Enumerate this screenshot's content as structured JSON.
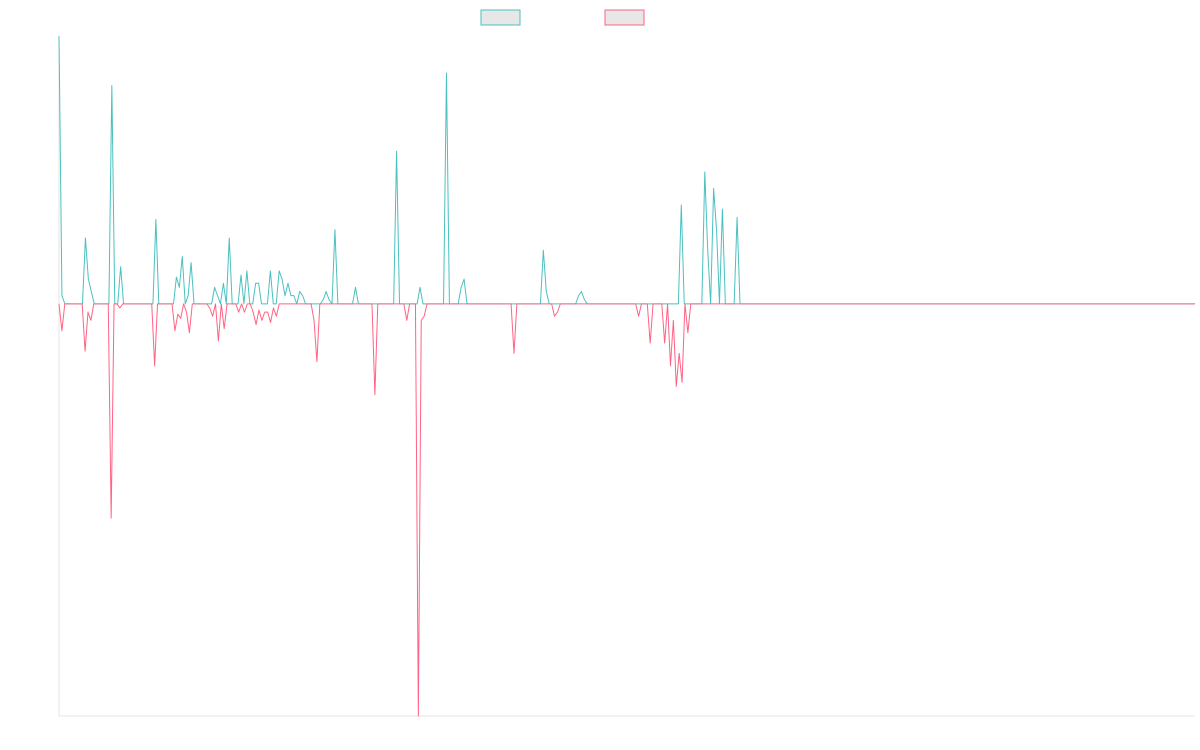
{
  "chart_data": {
    "type": "line",
    "title": "",
    "xlabel": "",
    "ylabel": "",
    "legend": "top-center",
    "grid": false,
    "xlim": [
      0,
      380
    ],
    "ylim": [
      -1.0,
      0.65
    ],
    "series": [
      {
        "color": "#4bc0c0",
        "swatch_fill": "#e7e7e7",
        "values": [
          0.65,
          0.02,
          0,
          0,
          0,
          0,
          0,
          0,
          0,
          0.16,
          0.06,
          0.03,
          0,
          0,
          0,
          0,
          0,
          0,
          0.53,
          0,
          0,
          0.09,
          0,
          0,
          0,
          0,
          0,
          0,
          0,
          0,
          0,
          0,
          0,
          0.205,
          0,
          0,
          0,
          0,
          0,
          0,
          0.065,
          0.04,
          0.115,
          0,
          0.02,
          0.1,
          0,
          0,
          0,
          0,
          0,
          0,
          0,
          0.04,
          0.02,
          0,
          0.05,
          0,
          0.16,
          0,
          0,
          0,
          0.07,
          0,
          0.08,
          0,
          0,
          0.05,
          0.05,
          0,
          0,
          0,
          0.08,
          0,
          0,
          0.08,
          0.06,
          0.02,
          0.05,
          0.02,
          0.02,
          0,
          0.03,
          0.02,
          0,
          0,
          0,
          0,
          0,
          0,
          0.01,
          0.03,
          0.01,
          0,
          0.18,
          0,
          0,
          0,
          0,
          0,
          0,
          0.04,
          0,
          0,
          0,
          0,
          0,
          0,
          0,
          0,
          0,
          0,
          0,
          0,
          0,
          0.37,
          0,
          0,
          0,
          0,
          0,
          0,
          0,
          0.04,
          0,
          0,
          0,
          0,
          0,
          0,
          0,
          0,
          0.56,
          0,
          0,
          0,
          0,
          0.04,
          0.06,
          0,
          0,
          0,
          0,
          0,
          0,
          0,
          0,
          0,
          0,
          0,
          0,
          0,
          0,
          0,
          0,
          0,
          0,
          0,
          0,
          0,
          0,
          0,
          0,
          0,
          0,
          0.13,
          0.03,
          0,
          0,
          0,
          0,
          0,
          0,
          0,
          0,
          0,
          0,
          0.02,
          0.03,
          0.01,
          0,
          0,
          0,
          0,
          0,
          0,
          0,
          0,
          0,
          0,
          0,
          0,
          0,
          0,
          0,
          0,
          0,
          0,
          0,
          0,
          0,
          0,
          0,
          0,
          0,
          0,
          0,
          0,
          0,
          0,
          0,
          0,
          0.24,
          0,
          0,
          0,
          0,
          0,
          0,
          0,
          0.32,
          0.13,
          0,
          0.28,
          0.18,
          0,
          0.23,
          0,
          0,
          0,
          0,
          0.21,
          0,
          0,
          0,
          0,
          0,
          0,
          0,
          0,
          0,
          0,
          0,
          0,
          0,
          0,
          0,
          0,
          0,
          0,
          0,
          0,
          0,
          0,
          0,
          0,
          0,
          0,
          0,
          0,
          0,
          0,
          0,
          0,
          0,
          0,
          0,
          0,
          0,
          0,
          0,
          0,
          0,
          0,
          0,
          0,
          0,
          0,
          0,
          0,
          0,
          0,
          0,
          0,
          0,
          0,
          0,
          0,
          0,
          0,
          0,
          0,
          0,
          0,
          0,
          0,
          0,
          0,
          0,
          0,
          0,
          0,
          0,
          0,
          0,
          0,
          0,
          0,
          0,
          0,
          0,
          0,
          0,
          0,
          0,
          0,
          0,
          0,
          0,
          0,
          0,
          0,
          0,
          0,
          0,
          0,
          0,
          0,
          0,
          0,
          0,
          0,
          0,
          0,
          0,
          0,
          0,
          0,
          0,
          0,
          0,
          0,
          0,
          0,
          0,
          0,
          0,
          0,
          0,
          0,
          0,
          0,
          0,
          0,
          0,
          0,
          0,
          0,
          0,
          0,
          0,
          0,
          0,
          0,
          0,
          0,
          0,
          0,
          0,
          0,
          0,
          0,
          0,
          0,
          0,
          0,
          0,
          0,
          0,
          0,
          0,
          0,
          0,
          0,
          0,
          0,
          0,
          0
        ]
      },
      {
        "color": "#ff6384",
        "swatch_fill": "#e7e7e7",
        "values": [
          0,
          -0.065,
          0,
          0,
          0,
          0,
          0,
          0,
          0,
          -0.115,
          -0.02,
          -0.04,
          0,
          0,
          0,
          0,
          0,
          0,
          -0.52,
          0,
          0,
          -0.01,
          0,
          0,
          0,
          0,
          0,
          0,
          0,
          0,
          0,
          0,
          0,
          -0.15,
          0,
          0,
          0,
          0,
          0,
          0,
          -0.065,
          -0.025,
          -0.035,
          0,
          -0.02,
          -0.07,
          0,
          0,
          0,
          0,
          0,
          0,
          -0.01,
          -0.03,
          0,
          -0.09,
          0,
          -0.06,
          0,
          0,
          0,
          0,
          -0.02,
          0,
          -0.02,
          0,
          0,
          -0.02,
          -0.05,
          -0.015,
          -0.04,
          -0.02,
          -0.02,
          -0.045,
          -0.01,
          -0.03,
          0,
          0,
          0,
          0,
          0,
          0,
          0,
          0,
          0,
          0,
          0,
          0,
          -0.04,
          -0.14,
          0,
          0,
          0,
          0,
          0,
          0,
          0,
          0,
          0,
          0,
          0,
          0,
          0,
          0,
          0,
          0,
          0,
          0,
          0,
          -0.22,
          0,
          0,
          0,
          0,
          0,
          0,
          0,
          0,
          0,
          0,
          -0.04,
          0,
          0,
          0,
          -1.0,
          -0.04,
          -0.03,
          0,
          0,
          0,
          0,
          0,
          0,
          0,
          0,
          0,
          0,
          0,
          0,
          0,
          0,
          0,
          0,
          0,
          0,
          0,
          0,
          0,
          0,
          0,
          0,
          0,
          0,
          0,
          0,
          0,
          0,
          -0.12,
          0,
          0,
          0,
          0,
          0,
          0,
          0,
          0,
          0,
          0,
          0,
          0,
          0,
          -0.03,
          -0.02,
          0,
          0,
          0,
          0,
          0,
          0,
          0,
          0,
          0,
          0,
          0,
          0,
          0,
          0,
          0,
          0,
          0,
          0,
          0,
          0,
          0,
          0,
          0,
          0,
          0,
          0,
          0,
          -0.03,
          0,
          0,
          0,
          -0.095,
          0,
          0,
          0,
          0,
          -0.095,
          0,
          -0.15,
          -0.04,
          -0.2,
          -0.12,
          -0.19,
          0,
          -0.07,
          0,
          0,
          0,
          0,
          0,
          0,
          0,
          0,
          0,
          0,
          0,
          0,
          0,
          0,
          0,
          0,
          0,
          0,
          0,
          0,
          0,
          0,
          0,
          0,
          0,
          0,
          0,
          0,
          0,
          0,
          0,
          0,
          0,
          0,
          0,
          0,
          0,
          0,
          0,
          0,
          0,
          0,
          0,
          0,
          0,
          0,
          0,
          0,
          0,
          0,
          0,
          0,
          0,
          0,
          0,
          0,
          0,
          0,
          0,
          0,
          0,
          0,
          0,
          0,
          0,
          0,
          0,
          0,
          0,
          0,
          0,
          0,
          0,
          0,
          0,
          0,
          0,
          0,
          0,
          0,
          0,
          0,
          0,
          0,
          0,
          0,
          0,
          0,
          0,
          0,
          0,
          0,
          0,
          0,
          0,
          0,
          0,
          0,
          0,
          0,
          0,
          0,
          0,
          0,
          0,
          0,
          0,
          0,
          0,
          0,
          0,
          0,
          0,
          0,
          0,
          0,
          0,
          0,
          0,
          0,
          0,
          0,
          0,
          0,
          0,
          0,
          0,
          0,
          0,
          0,
          0,
          0,
          0,
          0,
          0,
          0,
          0,
          0,
          0,
          0,
          0,
          0,
          0,
          0,
          0,
          0,
          0,
          0,
          0,
          0,
          0,
          0,
          0,
          0,
          0,
          0,
          0,
          0,
          0,
          0,
          0,
          0,
          0,
          0,
          0,
          0,
          0,
          0,
          0,
          0,
          0,
          0,
          0,
          0,
          0
        ]
      }
    ]
  }
}
